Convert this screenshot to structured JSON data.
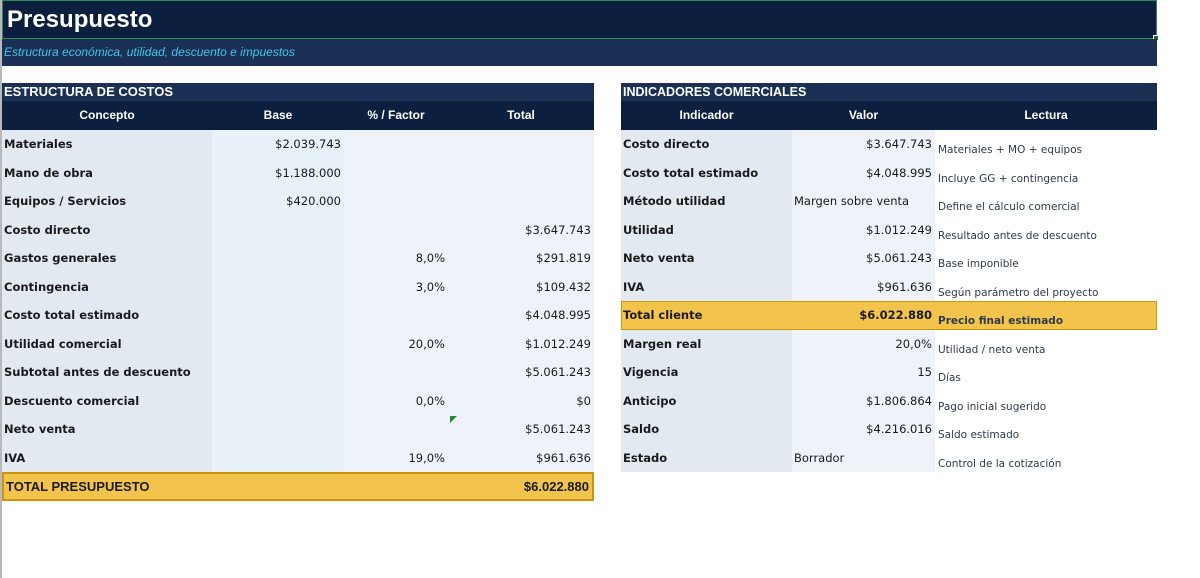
{
  "sheet": {
    "title": "Presupuesto",
    "subtitle": "Estructura económica, utilidad, descuento e impuestos"
  },
  "costs": {
    "section_title": "ESTRUCTURA DE COSTOS",
    "headers": [
      "Concepto",
      "Base",
      "% / Factor",
      "Total"
    ],
    "rows": [
      {
        "concepto": "Materiales",
        "base": "$2.039.743",
        "factor": "",
        "total": ""
      },
      {
        "concepto": "Mano de obra",
        "base": "$1.188.000",
        "factor": "",
        "total": ""
      },
      {
        "concepto": "Equipos / Servicios",
        "base": "$420.000",
        "factor": "",
        "total": ""
      },
      {
        "concepto": "Costo directo",
        "base": "",
        "factor": "",
        "total": "$3.647.743"
      },
      {
        "concepto": "Gastos generales",
        "base": "",
        "factor": "8,0%",
        "total": "$291.819"
      },
      {
        "concepto": "Contingencia",
        "base": "",
        "factor": "3,0%",
        "total": "$109.432"
      },
      {
        "concepto": "Costo total estimado",
        "base": "",
        "factor": "",
        "total": "$4.048.995"
      },
      {
        "concepto": "Utilidad comercial",
        "base": "",
        "factor": "20,0%",
        "total": "$1.012.249"
      },
      {
        "concepto": "Subtotal antes de descuento",
        "base": "",
        "factor": "",
        "total": "$5.061.243"
      },
      {
        "concepto": "Descuento comercial",
        "base": "",
        "factor": "0,0%",
        "total": "$0"
      },
      {
        "concepto": "Neto venta",
        "base": "",
        "factor": "",
        "total": "$5.061.243"
      },
      {
        "concepto": "IVA",
        "base": "",
        "factor": "19,0%",
        "total": "$961.636"
      }
    ],
    "total_label": "TOTAL PRESUPUESTO",
    "total_value": "$6.022.880"
  },
  "indicators": {
    "section_title": "INDICADORES COMERCIALES",
    "headers": [
      "Indicador",
      "Valor",
      "Lectura"
    ],
    "rows": [
      {
        "indicador": "Costo directo",
        "valor": "$3.647.743",
        "lectura": "Materiales + MO + equipos"
      },
      {
        "indicador": "Costo total estimado",
        "valor": "$4.048.995",
        "lectura": "Incluye GG + contingencia"
      },
      {
        "indicador": "Método utilidad",
        "valor": "Margen sobre venta",
        "lectura": "Define el cálculo comercial"
      },
      {
        "indicador": "Utilidad",
        "valor": "$1.012.249",
        "lectura": "Resultado antes de descuento"
      },
      {
        "indicador": "Neto venta",
        "valor": "$5.061.243",
        "lectura": "Base imponible"
      },
      {
        "indicador": "IVA",
        "valor": "$961.636",
        "lectura": "Según parámetro del proyecto"
      },
      {
        "indicador": "Total cliente",
        "valor": "$6.022.880",
        "lectura": "Precio final estimado"
      },
      {
        "indicador": "Margen real",
        "valor": "20,0%",
        "lectura": "Utilidad / neto venta"
      },
      {
        "indicador": "Vigencia",
        "valor": "15",
        "lectura": "Días"
      },
      {
        "indicador": "Anticipo",
        "valor": "$1.806.864",
        "lectura": "Pago inicial sugerido"
      },
      {
        "indicador": "Saldo",
        "valor": "$4.216.016",
        "lectura": "Saldo estimado"
      },
      {
        "indicador": "Estado",
        "valor": "Borrador",
        "lectura": "Control de la cotización"
      }
    ]
  },
  "colors": {
    "navy": "#0c1f3e",
    "header_blue": "#1b3055",
    "subtitle_cyan": "#46c3e8",
    "highlight_gold": "#f2c44c",
    "cell_light": "#e8f0f8"
  }
}
